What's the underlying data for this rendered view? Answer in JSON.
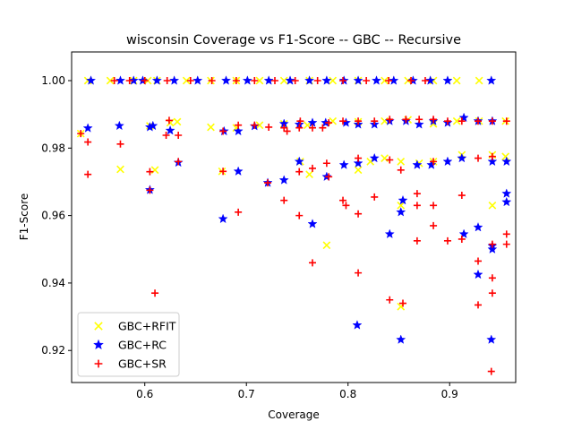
{
  "chart_data": {
    "type": "scatter",
    "title": "wisconsin Coverage vs F1-Score -- GBC -- Recursive",
    "xlabel": "Coverage",
    "ylabel": "F1-Score",
    "xlim": [
      0.528,
      0.965
    ],
    "ylim": [
      0.9105,
      1.0085
    ],
    "xticks": [
      0.6,
      0.7,
      0.8,
      0.9
    ],
    "xtick_labels": [
      "0.6",
      "0.7",
      "0.8",
      "0.9"
    ],
    "yticks": [
      0.92,
      0.94,
      0.96,
      0.98,
      1.0
    ],
    "ytick_labels": [
      "0.92",
      "0.94",
      "0.96",
      "0.98",
      "1.00"
    ],
    "grid": false,
    "legend_position": "lower-left",
    "series": [
      {
        "name": "GBC+RFIT",
        "marker": "x",
        "color": "#ffff00",
        "points": [
          [
            0.544,
            1.0
          ],
          [
            0.566,
            1.0
          ],
          [
            0.589,
            1.0
          ],
          [
            0.603,
            1.0
          ],
          [
            0.612,
            1.0
          ],
          [
            0.641,
            1.0
          ],
          [
            0.665,
            1.0
          ],
          [
            0.69,
            1.0
          ],
          [
            0.713,
            1.0
          ],
          [
            0.737,
            1.0
          ],
          [
            0.762,
            1.0
          ],
          [
            0.785,
            1.0
          ],
          [
            0.81,
            1.0
          ],
          [
            0.836,
            1.0
          ],
          [
            0.859,
            1.0
          ],
          [
            0.884,
            1.0
          ],
          [
            0.907,
            1.0
          ],
          [
            0.929,
            1.0
          ],
          [
            0.537,
            0.9843
          ],
          [
            0.605,
            0.9866
          ],
          [
            0.625,
            0.9875
          ],
          [
            0.632,
            0.9878
          ],
          [
            0.665,
            0.9862
          ],
          [
            0.69,
            0.986
          ],
          [
            0.713,
            0.9868
          ],
          [
            0.737,
            0.9872
          ],
          [
            0.76,
            0.9868
          ],
          [
            0.785,
            0.988
          ],
          [
            0.81,
            0.9878
          ],
          [
            0.836,
            0.988
          ],
          [
            0.859,
            0.9884
          ],
          [
            0.884,
            0.9872
          ],
          [
            0.907,
            0.988
          ],
          [
            0.929,
            0.988
          ],
          [
            0.955,
            0.988
          ],
          [
            0.576,
            0.9737
          ],
          [
            0.61,
            0.9735
          ],
          [
            0.676,
            0.9731
          ],
          [
            0.753,
            0.976
          ],
          [
            0.762,
            0.9722
          ],
          [
            0.81,
            0.9735
          ],
          [
            0.822,
            0.976
          ],
          [
            0.836,
            0.977
          ],
          [
            0.852,
            0.976
          ],
          [
            0.87,
            0.9755
          ],
          [
            0.884,
            0.976
          ],
          [
            0.912,
            0.978
          ],
          [
            0.942,
            0.978
          ],
          [
            0.955,
            0.9775
          ],
          [
            0.779,
            0.9512
          ],
          [
            0.852,
            0.963
          ],
          [
            0.852,
            0.933
          ],
          [
            0.942,
            0.963
          ]
        ]
      },
      {
        "name": "GBC+RC",
        "marker": "*",
        "color": "#0000ff",
        "points": [
          [
            0.547,
            1.0
          ],
          [
            0.576,
            1.0
          ],
          [
            0.589,
            1.0
          ],
          [
            0.598,
            1.0
          ],
          [
            0.612,
            1.0
          ],
          [
            0.629,
            1.0
          ],
          [
            0.652,
            1.0
          ],
          [
            0.68,
            1.0
          ],
          [
            0.701,
            1.0
          ],
          [
            0.722,
            1.0
          ],
          [
            0.743,
            1.0
          ],
          [
            0.762,
            1.0
          ],
          [
            0.779,
            1.0
          ],
          [
            0.796,
            1.0
          ],
          [
            0.81,
            1.0
          ],
          [
            0.828,
            1.0
          ],
          [
            0.845,
            1.0
          ],
          [
            0.864,
            1.0
          ],
          [
            0.881,
            1.0
          ],
          [
            0.898,
            1.0
          ],
          [
            0.941,
            1.0
          ],
          [
            0.544,
            0.9859
          ],
          [
            0.575,
            0.9866
          ],
          [
            0.605,
            0.9862
          ],
          [
            0.608,
            0.9866
          ],
          [
            0.625,
            0.9852
          ],
          [
            0.678,
            0.985
          ],
          [
            0.692,
            0.985
          ],
          [
            0.708,
            0.9865
          ],
          [
            0.737,
            0.9872
          ],
          [
            0.752,
            0.987
          ],
          [
            0.765,
            0.9875
          ],
          [
            0.778,
            0.9875
          ],
          [
            0.798,
            0.9875
          ],
          [
            0.81,
            0.987
          ],
          [
            0.826,
            0.987
          ],
          [
            0.841,
            0.988
          ],
          [
            0.857,
            0.988
          ],
          [
            0.87,
            0.987
          ],
          [
            0.884,
            0.988
          ],
          [
            0.898,
            0.9875
          ],
          [
            0.914,
            0.989
          ],
          [
            0.928,
            0.988
          ],
          [
            0.942,
            0.988
          ],
          [
            0.605,
            0.9676
          ],
          [
            0.633,
            0.9757
          ],
          [
            0.677,
            0.959
          ],
          [
            0.692,
            0.9731
          ],
          [
            0.721,
            0.9697
          ],
          [
            0.737,
            0.9705
          ],
          [
            0.752,
            0.976
          ],
          [
            0.765,
            0.9575
          ],
          [
            0.779,
            0.9715
          ],
          [
            0.796,
            0.975
          ],
          [
            0.81,
            0.9755
          ],
          [
            0.826,
            0.977
          ],
          [
            0.841,
            0.9545
          ],
          [
            0.852,
            0.961
          ],
          [
            0.854,
            0.9645
          ],
          [
            0.868,
            0.975
          ],
          [
            0.882,
            0.975
          ],
          [
            0.898,
            0.976
          ],
          [
            0.912,
            0.977
          ],
          [
            0.914,
            0.9545
          ],
          [
            0.928,
            0.9565
          ],
          [
            0.928,
            0.9425
          ],
          [
            0.942,
            0.951
          ],
          [
            0.942,
            0.95
          ],
          [
            0.942,
            0.976
          ],
          [
            0.956,
            0.976
          ],
          [
            0.956,
            0.964
          ],
          [
            0.956,
            0.9665
          ],
          [
            0.809,
            0.9275
          ],
          [
            0.852,
            0.9232
          ],
          [
            0.941,
            0.9232
          ]
        ]
      },
      {
        "name": "GBC+SR",
        "marker": "+",
        "color": "#ff0000",
        "points": [
          [
            0.57,
            1.0
          ],
          [
            0.585,
            1.0
          ],
          [
            0.6,
            1.0
          ],
          [
            0.622,
            1.0
          ],
          [
            0.645,
            1.0
          ],
          [
            0.666,
            1.0
          ],
          [
            0.69,
            1.0
          ],
          [
            0.708,
            1.0
          ],
          [
            0.728,
            1.0
          ],
          [
            0.748,
            1.0
          ],
          [
            0.77,
            1.0
          ],
          [
            0.795,
            1.0
          ],
          [
            0.818,
            1.0
          ],
          [
            0.84,
            1.0
          ],
          [
            0.862,
            1.0
          ],
          [
            0.876,
            1.0
          ],
          [
            0.537,
            0.9843
          ],
          [
            0.621,
            0.9838
          ],
          [
            0.624,
            0.9882
          ],
          [
            0.633,
            0.9838
          ],
          [
            0.677,
            0.985
          ],
          [
            0.692,
            0.9868
          ],
          [
            0.708,
            0.9868
          ],
          [
            0.722,
            0.9862
          ],
          [
            0.737,
            0.986
          ],
          [
            0.74,
            0.985
          ],
          [
            0.752,
            0.986
          ],
          [
            0.753,
            0.988
          ],
          [
            0.765,
            0.986
          ],
          [
            0.775,
            0.986
          ],
          [
            0.781,
            0.9875
          ],
          [
            0.795,
            0.988
          ],
          [
            0.81,
            0.988
          ],
          [
            0.826,
            0.988
          ],
          [
            0.841,
            0.9885
          ],
          [
            0.857,
            0.9885
          ],
          [
            0.87,
            0.9885
          ],
          [
            0.884,
            0.9885
          ],
          [
            0.898,
            0.988
          ],
          [
            0.912,
            0.988
          ],
          [
            0.928,
            0.988
          ],
          [
            0.942,
            0.988
          ],
          [
            0.956,
            0.988
          ],
          [
            0.544,
            0.9818
          ],
          [
            0.576,
            0.9812
          ],
          [
            0.544,
            0.9722
          ],
          [
            0.605,
            0.973
          ],
          [
            0.605,
            0.9675
          ],
          [
            0.633,
            0.976
          ],
          [
            0.677,
            0.9731
          ],
          [
            0.692,
            0.961
          ],
          [
            0.721,
            0.9697
          ],
          [
            0.737,
            0.9645
          ],
          [
            0.752,
            0.96
          ],
          [
            0.752,
            0.973
          ],
          [
            0.765,
            0.974
          ],
          [
            0.765,
            0.946
          ],
          [
            0.779,
            0.9755
          ],
          [
            0.781,
            0.9715
          ],
          [
            0.795,
            0.9645
          ],
          [
            0.798,
            0.963
          ],
          [
            0.81,
            0.9605
          ],
          [
            0.81,
            0.977
          ],
          [
            0.81,
            0.943
          ],
          [
            0.826,
            0.9655
          ],
          [
            0.841,
            0.9765
          ],
          [
            0.841,
            0.935
          ],
          [
            0.852,
            0.9735
          ],
          [
            0.854,
            0.934
          ],
          [
            0.868,
            0.9665
          ],
          [
            0.868,
            0.963
          ],
          [
            0.868,
            0.9525
          ],
          [
            0.884,
            0.963
          ],
          [
            0.884,
            0.957
          ],
          [
            0.884,
            0.976
          ],
          [
            0.898,
            0.9525
          ],
          [
            0.912,
            0.966
          ],
          [
            0.912,
            0.953
          ],
          [
            0.928,
            0.9465
          ],
          [
            0.928,
            0.9335
          ],
          [
            0.928,
            0.977
          ],
          [
            0.942,
            0.9415
          ],
          [
            0.942,
            0.937
          ],
          [
            0.942,
            0.9515
          ],
          [
            0.942,
            0.9775
          ],
          [
            0.956,
            0.9545
          ],
          [
            0.956,
            0.9515
          ],
          [
            0.941,
            0.9138
          ],
          [
            0.61,
            0.937
          ]
        ]
      }
    ]
  }
}
